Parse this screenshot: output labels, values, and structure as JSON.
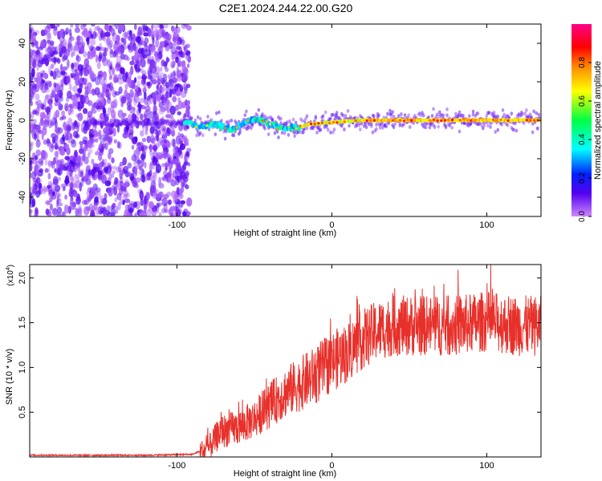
{
  "title": "C2E1.2024.244.22.00.G20",
  "colors": {
    "line": "#e8302a",
    "frame": "#000000",
    "colormap": [
      "#cc88ff",
      "#5500ee",
      "#0022ff",
      "#00ffff",
      "#00ff44",
      "#ffff00",
      "#ff8800",
      "#ff0000",
      "#ff0088"
    ]
  },
  "chart_data": [
    {
      "type": "heatmap",
      "xlabel": "Height of straight line (km)",
      "ylabel": "Frequency (Hz)",
      "xlim": [
        -195,
        135
      ],
      "ylim": [
        -50,
        50
      ],
      "xticks": [
        -100,
        0,
        100
      ],
      "xtick_labels": [
        "-100",
        "0",
        "100"
      ],
      "yticks": [
        -40,
        -20,
        0,
        20,
        40
      ],
      "ytick_labels": [
        "-40",
        "-20",
        "0",
        "20",
        "40"
      ],
      "description_of_values": "noise scatter for x < -95 km; narrow band centred near 0 Hz from -95 to 135 km",
      "band_center_hz": [
        [
          -95,
          -1.5
        ],
        [
          -85,
          -3
        ],
        [
          -75,
          -2
        ],
        [
          -65,
          -5
        ],
        [
          -55,
          -1
        ],
        [
          -48,
          1
        ],
        [
          -40,
          -2
        ],
        [
          -32,
          -4
        ],
        [
          -22,
          -4
        ],
        [
          -15,
          -2
        ],
        [
          0,
          -1
        ],
        [
          20,
          0
        ],
        [
          40,
          0
        ],
        [
          60,
          0
        ],
        [
          80,
          0
        ],
        [
          100,
          0
        ],
        [
          120,
          0
        ],
        [
          135,
          0
        ]
      ],
      "colorbar": {
        "label": "Normalized spectral amplitude",
        "range": [
          0,
          1
        ],
        "ticks": [
          0,
          0.2,
          0.4,
          0.6,
          0.8
        ],
        "tick_labels": [
          "0.0",
          "0.2",
          "0.4",
          "0.6",
          "0.8"
        ]
      }
    },
    {
      "type": "line",
      "xlabel": "Height of straight line (km)",
      "ylabel": "SNR (10 * v/v)",
      "y_multiplier": "(x10",
      "y_multiplier_exp": "4",
      "y_multiplier_close": ")",
      "xlim": [
        -195,
        135
      ],
      "ylim": [
        0,
        2.15
      ],
      "xticks": [
        -100,
        0,
        100
      ],
      "xtick_labels": [
        "-100",
        "0",
        "100"
      ],
      "yticks": [
        0.5,
        1.0,
        1.5,
        2.0
      ],
      "ytick_labels": [
        "0.5",
        "1.0",
        "1.5",
        "2.0"
      ],
      "series": [
        {
          "trend": [
            [
              -195,
              0.02
            ],
            [
              -120,
              0.02
            ],
            [
              -90,
              0.03
            ],
            [
              -80,
              0.1
            ],
            [
              -72,
              0.3
            ],
            [
              -60,
              0.35
            ],
            [
              -50,
              0.45
            ],
            [
              -40,
              0.6
            ],
            [
              -30,
              0.75
            ],
            [
              -20,
              0.85
            ],
            [
              -10,
              0.95
            ],
            [
              0,
              1.1
            ],
            [
              10,
              1.2
            ],
            [
              20,
              1.35
            ],
            [
              30,
              1.45
            ],
            [
              40,
              1.5
            ],
            [
              60,
              1.5
            ],
            [
              80,
              1.5
            ],
            [
              100,
              1.55
            ],
            [
              120,
              1.5
            ],
            [
              135,
              1.5
            ]
          ],
          "peak_max": 2.15
        }
      ]
    }
  ]
}
